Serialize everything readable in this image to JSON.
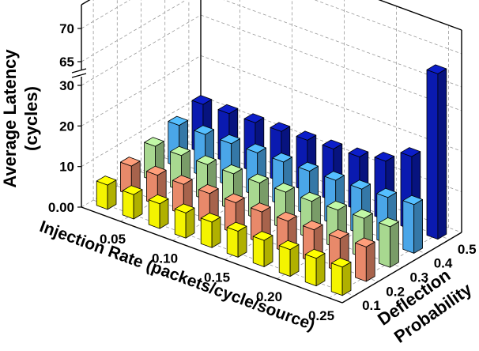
{
  "chart_data": {
    "type": "bar",
    "subtype": "3d-bar",
    "title": "",
    "ylabel": "Average Latency (cycles)",
    "ylabel_lines": [
      "Average Latency",
      "(cycles)"
    ],
    "xlabel": "Injection Rate (packets/cycle/source)",
    "zlabel": "Deflection Probability",
    "zlabel_lines": [
      "Deflection",
      "Probability"
    ],
    "x_tick_labels": [
      "0.05",
      "0.10",
      "0.15",
      "0.20",
      "0.25"
    ],
    "z_tick_labels": [
      "0.1",
      "0.2",
      "0.3",
      "0.4",
      "0.5"
    ],
    "y_tick_labels": [
      "0.00",
      "10",
      "20",
      "30",
      "65",
      "70"
    ],
    "y_axis_break": [
      30,
      65
    ],
    "ylim": [
      0,
      70
    ],
    "x": [
      0.025,
      0.05,
      0.075,
      0.1,
      0.125,
      0.15,
      0.175,
      0.2,
      0.225,
      0.25
    ],
    "series": [
      {
        "name": "0.1",
        "color": "#f4f400",
        "values": [
          6.0,
          6.0,
          6.1,
          6.2,
          6.3,
          6.4,
          6.5,
          6.6,
          6.8,
          7.0
        ]
      },
      {
        "name": "0.2",
        "color": "#e8896a",
        "values": [
          7.2,
          7.3,
          7.4,
          7.5,
          7.6,
          7.7,
          7.8,
          8.0,
          8.2,
          8.5
        ]
      },
      {
        "name": "0.3",
        "color": "#a8d890",
        "values": [
          8.6,
          8.7,
          8.8,
          8.9,
          9.0,
          9.1,
          9.2,
          9.4,
          9.7,
          10.0
        ]
      },
      {
        "name": "0.4",
        "color": "#4aa6e8",
        "values": [
          10.3,
          10.4,
          10.5,
          10.6,
          10.7,
          10.8,
          10.9,
          11.1,
          11.4,
          12.0
        ]
      },
      {
        "name": "0.5",
        "color": "#0a1ab0",
        "values": [
          12.0,
          12.1,
          12.2,
          12.4,
          12.6,
          12.8,
          13.2,
          14.5,
          18.0,
          68.0
        ]
      }
    ],
    "grid": true,
    "legend": "none"
  }
}
